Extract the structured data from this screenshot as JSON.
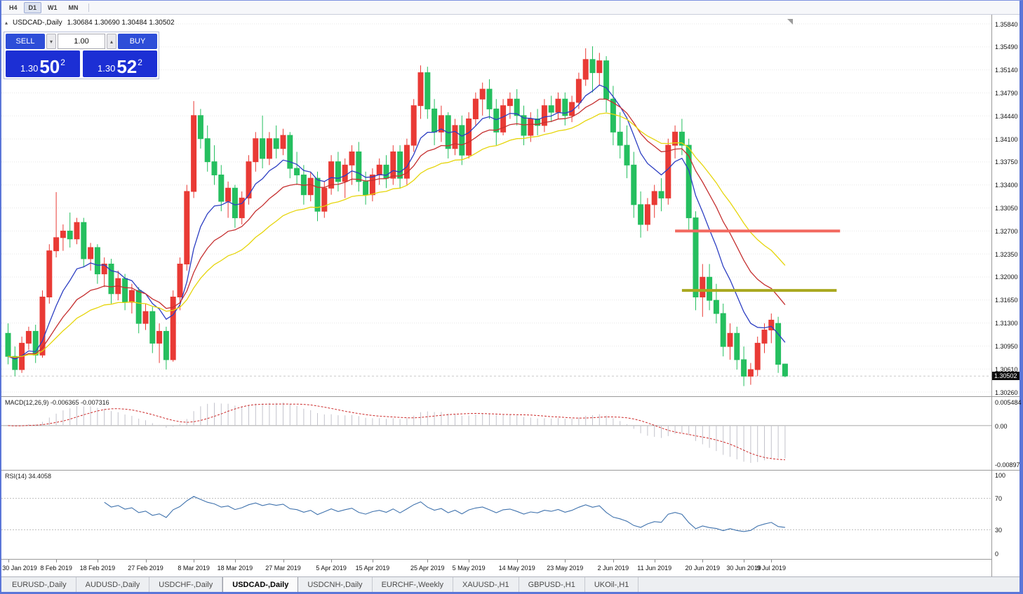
{
  "colors": {
    "frame_blue": "#5b76d8",
    "trade_button_blue": "#2e4ed8",
    "price_box_blue": "#1c2fd4",
    "grid": "#e7e7e7"
  },
  "toolbar": {
    "timeframes": [
      {
        "label": "H4",
        "active": false
      },
      {
        "label": "D1",
        "active": true
      },
      {
        "label": "W1",
        "active": false
      },
      {
        "label": "MN",
        "active": false
      }
    ]
  },
  "chart_header": {
    "collapse_icon": "▴",
    "symbol": "USDCAD-,Daily",
    "ohlc": "1.30684 1.30690 1.30484 1.30502"
  },
  "trade_panel": {
    "sell_label": "SELL",
    "buy_label": "BUY",
    "volume": "1.00",
    "volume_down_icon": "▾",
    "volume_up_icon": "▴",
    "sell_price": {
      "big_prefix": "1.30",
      "pips": "50",
      "fraction": "2"
    },
    "buy_price": {
      "big_prefix": "1.30",
      "pips": "52",
      "fraction": "2"
    }
  },
  "price_scale": {
    "current_price": "1.30502"
  },
  "indicators": {
    "macd_label": "MACD(12,26,9) -0.006365 -0.007316",
    "rsi_label": "RSI(14) 34.4058"
  },
  "tabs": [
    {
      "label": "EURUSD-,Daily",
      "active": false
    },
    {
      "label": "AUDUSD-,Daily",
      "active": false
    },
    {
      "label": "USDCHF-,Daily",
      "active": false
    },
    {
      "label": "USDCAD-,Daily",
      "active": true
    },
    {
      "label": "USDCNH-,Daily",
      "active": false
    },
    {
      "label": "EURCHF-,Weekly",
      "active": false
    },
    {
      "label": "XAUUSD-,H1",
      "active": false
    },
    {
      "label": "GBPUSD-,H1",
      "active": false
    },
    {
      "label": "UKOil-,H1",
      "active": false
    }
  ],
  "chart_data": {
    "type": "candlestick",
    "symbol": "USDCAD-",
    "timeframe": "Daily",
    "up_color": "#e93a35",
    "down_color": "#25bf5f",
    "y_range": [
      1.3026,
      1.3584
    ],
    "y_ticks": [
      "1.35840",
      "1.35490",
      "1.35140",
      "1.34790",
      "1.34440",
      "1.34100",
      "1.33750",
      "1.33400",
      "1.33050",
      "1.32700",
      "1.32350",
      "1.32000",
      "1.31650",
      "1.31300",
      "1.30950",
      "1.30610",
      "1.30260"
    ],
    "x_ticks": [
      {
        "label": "30 Jan 2019",
        "index": 0
      },
      {
        "label": "8 Feb 2019",
        "index": 7
      },
      {
        "label": "18 Feb 2019",
        "index": 13
      },
      {
        "label": "27 Feb 2019",
        "index": 20
      },
      {
        "label": "8 Mar 2019",
        "index": 27
      },
      {
        "label": "18 Mar 2019",
        "index": 33
      },
      {
        "label": "27 Mar 2019",
        "index": 40
      },
      {
        "label": "5 Apr 2019",
        "index": 47
      },
      {
        "label": "15 Apr 2019",
        "index": 53
      },
      {
        "label": "25 Apr 2019",
        "index": 61
      },
      {
        "label": "5 May 2019",
        "index": 67
      },
      {
        "label": "14 May 2019",
        "index": 74
      },
      {
        "label": "23 May 2019",
        "index": 81
      },
      {
        "label": "2 Jun 2019",
        "index": 88
      },
      {
        "label": "11 Jun 2019",
        "index": 94
      },
      {
        "label": "20 Jun 2019",
        "index": 101
      },
      {
        "label": "30 Jun 2019",
        "index": 107
      },
      {
        "label": "9 Jul 2019",
        "index": 111
      }
    ],
    "candles": [
      [
        1.3115,
        1.313,
        1.3068,
        1.308
      ],
      [
        1.308,
        1.3095,
        1.305,
        1.306
      ],
      [
        1.306,
        1.311,
        1.3055,
        1.31
      ],
      [
        1.31,
        1.3125,
        1.309,
        1.3118
      ],
      [
        1.3118,
        1.3128,
        1.307,
        1.3082
      ],
      [
        1.3082,
        1.318,
        1.3078,
        1.317
      ],
      [
        1.317,
        1.325,
        1.316,
        1.324
      ],
      [
        1.324,
        1.3329,
        1.323,
        1.326
      ],
      [
        1.326,
        1.328,
        1.324,
        1.327
      ],
      [
        1.327,
        1.3298,
        1.3245,
        1.3258
      ],
      [
        1.3258,
        1.329,
        1.325,
        1.3283
      ],
      [
        1.3283,
        1.329,
        1.3215,
        1.3228
      ],
      [
        1.3228,
        1.3252,
        1.321,
        1.3245
      ],
      [
        1.3245,
        1.325,
        1.319,
        1.3205
      ],
      [
        1.3205,
        1.323,
        1.3185,
        1.322
      ],
      [
        1.322,
        1.3228,
        1.316,
        1.3175
      ],
      [
        1.3175,
        1.321,
        1.3165,
        1.3198
      ],
      [
        1.3198,
        1.3205,
        1.315,
        1.3162
      ],
      [
        1.3162,
        1.319,
        1.3145,
        1.318
      ],
      [
        1.318,
        1.3185,
        1.3115,
        1.313
      ],
      [
        1.313,
        1.316,
        1.312,
        1.3148
      ],
      [
        1.3148,
        1.3155,
        1.3085,
        1.31
      ],
      [
        1.31,
        1.313,
        1.307,
        1.3118
      ],
      [
        1.3118,
        1.3125,
        1.306,
        1.3075
      ],
      [
        1.3075,
        1.318,
        1.3072,
        1.317
      ],
      [
        1.317,
        1.323,
        1.315,
        1.322
      ],
      [
        1.322,
        1.334,
        1.321,
        1.333
      ],
      [
        1.333,
        1.3467,
        1.332,
        1.3445
      ],
      [
        1.3445,
        1.3455,
        1.3395,
        1.341
      ],
      [
        1.341,
        1.343,
        1.336,
        1.3375
      ],
      [
        1.3375,
        1.34,
        1.334,
        1.3355
      ],
      [
        1.3355,
        1.337,
        1.33,
        1.3315
      ],
      [
        1.3315,
        1.3345,
        1.329,
        1.3335
      ],
      [
        1.3335,
        1.334,
        1.3275,
        1.329
      ],
      [
        1.329,
        1.333,
        1.328,
        1.332
      ],
      [
        1.332,
        1.3385,
        1.331,
        1.3375
      ],
      [
        1.3375,
        1.342,
        1.336,
        1.341
      ],
      [
        1.341,
        1.3445,
        1.3365,
        1.338
      ],
      [
        1.338,
        1.342,
        1.337,
        1.341
      ],
      [
        1.341,
        1.343,
        1.338,
        1.3395
      ],
      [
        1.3395,
        1.3425,
        1.3385,
        1.3415
      ],
      [
        1.3415,
        1.342,
        1.335,
        1.3365
      ],
      [
        1.3365,
        1.339,
        1.334,
        1.3355
      ],
      [
        1.3355,
        1.337,
        1.331,
        1.3325
      ],
      [
        1.3325,
        1.336,
        1.3315,
        1.335
      ],
      [
        1.335,
        1.336,
        1.3285,
        1.33
      ],
      [
        1.33,
        1.3345,
        1.329,
        1.3335
      ],
      [
        1.3335,
        1.3385,
        1.3325,
        1.3375
      ],
      [
        1.3375,
        1.339,
        1.333,
        1.3345
      ],
      [
        1.3345,
        1.338,
        1.332,
        1.337
      ],
      [
        1.337,
        1.34,
        1.334,
        1.339
      ],
      [
        1.339,
        1.3405,
        1.333,
        1.3345
      ],
      [
        1.3345,
        1.336,
        1.331,
        1.3325
      ],
      [
        1.3325,
        1.3365,
        1.3315,
        1.3355
      ],
      [
        1.3355,
        1.338,
        1.334,
        1.337
      ],
      [
        1.337,
        1.3385,
        1.3335,
        1.335
      ],
      [
        1.335,
        1.34,
        1.334,
        1.339
      ],
      [
        1.339,
        1.34,
        1.3335,
        1.335
      ],
      [
        1.335,
        1.341,
        1.334,
        1.34
      ],
      [
        1.34,
        1.347,
        1.339,
        1.346
      ],
      [
        1.346,
        1.3521,
        1.344,
        1.351
      ],
      [
        1.351,
        1.3519,
        1.344,
        1.3455
      ],
      [
        1.3455,
        1.347,
        1.34,
        1.342
      ],
      [
        1.342,
        1.346,
        1.3405,
        1.3445
      ],
      [
        1.3445,
        1.345,
        1.338,
        1.3395
      ],
      [
        1.3395,
        1.344,
        1.3385,
        1.343
      ],
      [
        1.343,
        1.3445,
        1.337,
        1.3385
      ],
      [
        1.3385,
        1.345,
        1.338,
        1.344
      ],
      [
        1.344,
        1.348,
        1.343,
        1.347
      ],
      [
        1.347,
        1.3495,
        1.3445,
        1.3485
      ],
      [
        1.3485,
        1.35,
        1.344,
        1.3455
      ],
      [
        1.3455,
        1.347,
        1.34,
        1.342
      ],
      [
        1.342,
        1.347,
        1.3415,
        1.346
      ],
      [
        1.346,
        1.348,
        1.344,
        1.347
      ],
      [
        1.347,
        1.3485,
        1.343,
        1.3445
      ],
      [
        1.3445,
        1.346,
        1.34,
        1.3415
      ],
      [
        1.3415,
        1.345,
        1.3405,
        1.344
      ],
      [
        1.344,
        1.3455,
        1.3415,
        1.343
      ],
      [
        1.343,
        1.347,
        1.342,
        1.346
      ],
      [
        1.346,
        1.3475,
        1.3435,
        1.345
      ],
      [
        1.345,
        1.348,
        1.344,
        1.347
      ],
      [
        1.347,
        1.348,
        1.343,
        1.3445
      ],
      [
        1.3445,
        1.3475,
        1.3435,
        1.3465
      ],
      [
        1.3465,
        1.351,
        1.3455,
        1.35
      ],
      [
        1.35,
        1.3547,
        1.349,
        1.353
      ],
      [
        1.353,
        1.355,
        1.348,
        1.351
      ],
      [
        1.351,
        1.354,
        1.349,
        1.3528
      ],
      [
        1.3528,
        1.3535,
        1.345,
        1.347
      ],
      [
        1.347,
        1.349,
        1.34,
        1.342
      ],
      [
        1.342,
        1.345,
        1.338,
        1.34
      ],
      [
        1.34,
        1.343,
        1.335,
        1.337
      ],
      [
        1.337,
        1.339,
        1.329,
        1.331
      ],
      [
        1.331,
        1.333,
        1.326,
        1.328
      ],
      [
        1.328,
        1.332,
        1.327,
        1.331
      ],
      [
        1.331,
        1.334,
        1.329,
        1.333
      ],
      [
        1.333,
        1.335,
        1.33,
        1.332
      ],
      [
        1.332,
        1.341,
        1.331,
        1.34
      ],
      [
        1.34,
        1.343,
        1.338,
        1.342
      ],
      [
        1.342,
        1.344,
        1.3385,
        1.34
      ],
      [
        1.34,
        1.341,
        1.327,
        1.329
      ],
      [
        1.329,
        1.33,
        1.315,
        1.317
      ],
      [
        1.317,
        1.322,
        1.314,
        1.32
      ],
      [
        1.32,
        1.322,
        1.315,
        1.3165
      ],
      [
        1.3165,
        1.319,
        1.313,
        1.3145
      ],
      [
        1.3145,
        1.316,
        1.308,
        1.3095
      ],
      [
        1.3095,
        1.313,
        1.3075,
        1.3115
      ],
      [
        1.3115,
        1.3125,
        1.306,
        1.3075
      ],
      [
        1.3075,
        1.3095,
        1.3035,
        1.305
      ],
      [
        1.305,
        1.307,
        1.3037,
        1.306
      ],
      [
        1.306,
        1.311,
        1.305,
        1.31
      ],
      [
        1.31,
        1.313,
        1.3085,
        1.312
      ],
      [
        1.312,
        1.3145,
        1.31,
        1.3135
      ],
      [
        1.313,
        1.314,
        1.3055,
        1.3068
      ],
      [
        1.30684,
        1.3069,
        1.30484,
        1.30502
      ]
    ],
    "moving_averages": [
      {
        "name": "ema-fast",
        "period": 9,
        "color": "#2c3ec2"
      },
      {
        "name": "ema-mid",
        "period": 18,
        "color": "#c53030"
      },
      {
        "name": "ema-slow",
        "period": 30,
        "color": "#e6d50a"
      }
    ],
    "horizontal_lines": [
      {
        "name": "resistance-line",
        "price": 1.327,
        "color": "#f2685e",
        "width": 4,
        "from_index": 97,
        "to_index": 121
      },
      {
        "name": "support-line",
        "price": 1.318,
        "color": "#a9a81f",
        "width": 4,
        "from_index": 98,
        "to_index": 120.5
      }
    ],
    "bid_price": 1.30502,
    "macd": {
      "fast": 12,
      "slow": 26,
      "signal": 9,
      "value": -0.006365,
      "signal_value": -0.007316,
      "scale_labels": [
        "0.005484",
        "0.00",
        "-0.00897"
      ],
      "bar_color": "#c3c3cc",
      "signal_color": "#cc2a2a"
    },
    "rsi": {
      "period": 14,
      "value": 34.4058,
      "levels": [
        70,
        30
      ],
      "scale_labels": [
        "100",
        "70",
        "30",
        "0"
      ],
      "line_color": "#3f72ad",
      "level_color": "#bdbdbd"
    }
  }
}
